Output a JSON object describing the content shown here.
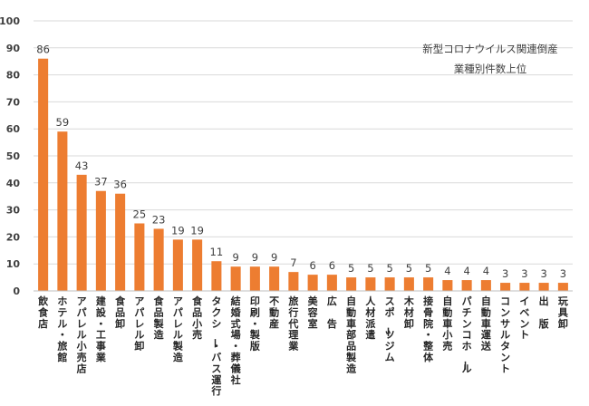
{
  "chart_data": {
    "type": "bar",
    "title_lines": [
      "新型コロナウイルス関連倒産",
      "業種別件数上位"
    ],
    "categories": [
      "飲食店",
      "ホテル・旅館",
      "アパレル小売店",
      "建設・工事業",
      "食品卸",
      "アパレル卸",
      "食品製造",
      "アパレル製造",
      "食品小売",
      "タクシー・バス運行",
      "結婚式場・葬儀社",
      "印刷・製版",
      "不動産",
      "旅行代理業",
      "美容室",
      "広 告",
      "自動車部品製造",
      "人材派遣",
      "スポーツジム",
      "木材卸",
      "接骨院・整体",
      "自動車小売",
      "パチンコホール",
      "自動車運送",
      "コンサルタント",
      "イベント",
      "出 版",
      "玩具卸"
    ],
    "values": [
      86,
      59,
      43,
      37,
      36,
      25,
      23,
      19,
      19,
      11,
      9,
      9,
      9,
      7,
      6,
      6,
      5,
      5,
      5,
      5,
      5,
      4,
      4,
      4,
      3,
      3,
      3,
      3
    ],
    "ylim": [
      0,
      100
    ],
    "yticks": [
      0,
      10,
      20,
      30,
      40,
      50,
      60,
      70,
      80,
      90,
      100
    ],
    "grid": true,
    "bar_color": "#ed7d31"
  }
}
